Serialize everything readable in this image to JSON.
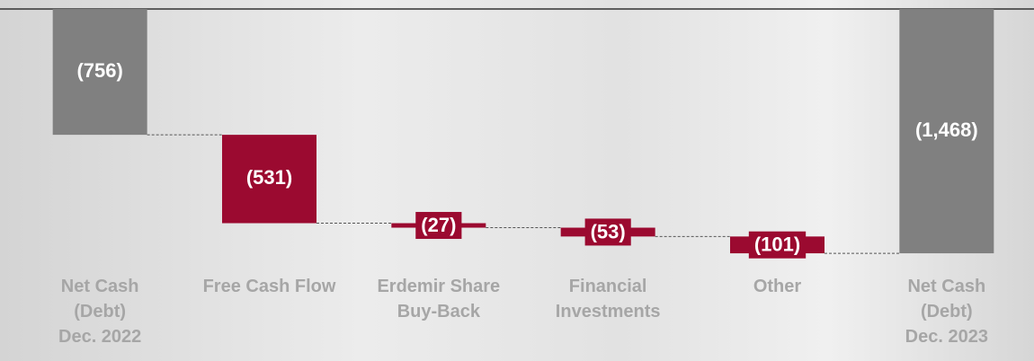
{
  "chart_data": {
    "type": "waterfall",
    "categories": [
      "Net Cash\n(Debt)\nDec. 2022",
      "Free Cash Flow",
      "Erdemir Share\nBuy-Back",
      "Financial\nInvestments",
      "Other",
      "Net Cash\n(Debt)\nDec. 2023"
    ],
    "values": [
      -756,
      -531,
      -27,
      -53,
      -101,
      -1468
    ],
    "value_labels": [
      "(756)",
      "(531)",
      "(27)",
      "(53)",
      "(101)",
      "(1,468)"
    ],
    "colors": [
      "#808080",
      "#9b0a30",
      "#9b0a30",
      "#9b0a30",
      "#9b0a30",
      "#808080"
    ],
    "ylim": [
      -1500,
      0
    ]
  }
}
